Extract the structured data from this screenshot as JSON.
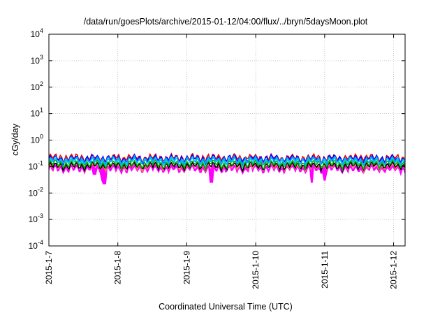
{
  "chart_data": {
    "type": "line",
    "title": "/data/run/goesPlots/archive/2015-01-12/04:00/flux/../bryn/5daysMoon.plot",
    "xlabel": "Coordinated Universal Time (UTC)",
    "ylabel": "cGy/day",
    "yscale": "log",
    "ylim": [
      0.0001,
      10000
    ],
    "xlim": [
      "2015-01-07 00:00",
      "2015-01-12 04:00"
    ],
    "grid": true,
    "x_ticks": [
      "2015-1-7",
      "2015-1-8",
      "2015-1-9",
      "2015-1-10",
      "2015-1-11",
      "2015-1-12"
    ],
    "y_ticks": [
      {
        "value": 0.0001,
        "base": "10",
        "exp": "-4"
      },
      {
        "value": 0.001,
        "base": "10",
        "exp": "-3"
      },
      {
        "value": 0.01,
        "base": "10",
        "exp": "-2"
      },
      {
        "value": 0.1,
        "base": "10",
        "exp": "-1"
      },
      {
        "value": 1,
        "base": "10",
        "exp": "0"
      },
      {
        "value": 10,
        "base": "10",
        "exp": "1"
      },
      {
        "value": 100,
        "base": "10",
        "exp": "2"
      },
      {
        "value": 1000,
        "base": "10",
        "exp": "3"
      },
      {
        "value": 10000,
        "base": "10",
        "exp": "4"
      }
    ],
    "series": [
      {
        "color": "#ff00ff",
        "baseline": 0.09,
        "fill_min": true,
        "dips": [
          {
            "date": "2015-01-07 16:00",
            "value": 0.05
          },
          {
            "date": "2015-01-07 19:00",
            "value": 0.03
          },
          {
            "date": "2015-01-07 19:30",
            "value": 0.022
          },
          {
            "date": "2015-01-09 08:30",
            "value": 0.025
          },
          {
            "date": "2015-01-10 19:30",
            "value": 0.025
          },
          {
            "date": "2015-01-11 00:00",
            "value": 0.03
          }
        ]
      },
      {
        "color": "#ff6666",
        "baseline": 0.1
      },
      {
        "color": "#000000",
        "baseline": 0.11
      },
      {
        "color": "#00aa00",
        "baseline": 0.13
      },
      {
        "color": "#00cccc",
        "baseline": 0.16
      },
      {
        "color": "#ff0000",
        "baseline": 0.22
      },
      {
        "color": "#0000ff",
        "baseline": 0.2
      },
      {
        "color": "#00aaff",
        "baseline": 0.18
      }
    ]
  }
}
